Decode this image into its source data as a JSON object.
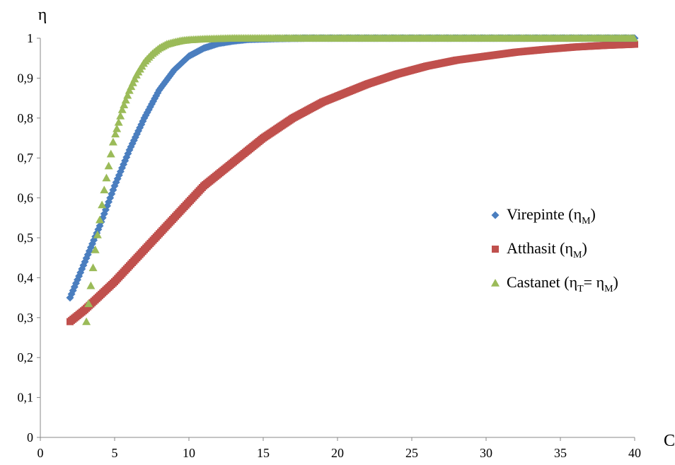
{
  "chart_data": {
    "type": "scatter",
    "title": "",
    "xlabel": "C",
    "ylabel": "η",
    "xlim": [
      0,
      40
    ],
    "ylim": [
      0,
      1
    ],
    "xticks": [
      0,
      5,
      10,
      15,
      20,
      25,
      30,
      35,
      40
    ],
    "xtick_labels": [
      "0",
      "5",
      "10",
      "15",
      "20",
      "25",
      "30",
      "35",
      "40"
    ],
    "yticks": [
      0,
      0.1,
      0.2,
      0.3,
      0.4,
      0.5,
      0.6,
      0.7,
      0.8,
      0.9,
      1
    ],
    "ytick_labels": [
      "0",
      "0,1",
      "0,2",
      "0,3",
      "0,4",
      "0,5",
      "0,6",
      "0,7",
      "0,8",
      "0,9",
      "1"
    ],
    "grid": false,
    "legend_position": "right",
    "series": [
      {
        "name": "Virepinte (η_M)",
        "legend_main": "Virepinte (η",
        "legend_sub": "M",
        "legend_end": ")",
        "marker": "diamond",
        "color": "#4a7ebf",
        "x": [
          2,
          3,
          4,
          5,
          6,
          7,
          8,
          9,
          10,
          11,
          12,
          13,
          14,
          15,
          16,
          18,
          20,
          25,
          30,
          35,
          40
        ],
        "y": [
          0.35,
          0.44,
          0.53,
          0.63,
          0.72,
          0.8,
          0.87,
          0.92,
          0.955,
          0.975,
          0.987,
          0.993,
          0.997,
          0.998,
          0.999,
          1.0,
          1.0,
          1.0,
          1.0,
          1.0,
          1.0
        ]
      },
      {
        "name": "Atthasit (η_M)",
        "legend_main": "Atthasit (η",
        "legend_sub": "M",
        "legend_end": ")",
        "marker": "square",
        "color": "#c0504d",
        "x": [
          2,
          3,
          4,
          5,
          6,
          7,
          8,
          9,
          10,
          11,
          12,
          13,
          14,
          15,
          16,
          17,
          18,
          19,
          20,
          22,
          24,
          26,
          28,
          30,
          32,
          34,
          36,
          38,
          40
        ],
        "y": [
          0.29,
          0.32,
          0.355,
          0.39,
          0.43,
          0.47,
          0.51,
          0.55,
          0.59,
          0.63,
          0.66,
          0.69,
          0.72,
          0.75,
          0.775,
          0.8,
          0.82,
          0.84,
          0.855,
          0.885,
          0.91,
          0.93,
          0.945,
          0.955,
          0.965,
          0.972,
          0.978,
          0.982,
          0.985
        ]
      },
      {
        "name": "Castanet (η_T= η_M)",
        "legend_main": "Castanet (η",
        "legend_sub": "T",
        "legend_mid": "= η",
        "legend_sub2": "M",
        "legend_end": ")",
        "marker": "triangle",
        "color": "#9bbb59",
        "x": [
          3.1,
          3.3,
          3.5,
          3.7,
          3.9,
          4.1,
          4.3,
          4.5,
          4.7,
          4.9,
          5.2,
          5.5,
          6,
          6.5,
          7,
          7.5,
          8,
          8.5,
          9,
          9.5,
          10,
          11,
          12,
          13,
          14,
          15,
          20,
          25,
          30,
          35,
          40
        ],
        "y": [
          0.29,
          0.35,
          0.41,
          0.47,
          0.52,
          0.57,
          0.62,
          0.66,
          0.7,
          0.74,
          0.78,
          0.82,
          0.87,
          0.91,
          0.94,
          0.96,
          0.975,
          0.985,
          0.99,
          0.994,
          0.996,
          0.998,
          0.999,
          1.0,
          1.0,
          1.0,
          1.0,
          1.0,
          1.0,
          1.0,
          1.0
        ]
      }
    ]
  }
}
